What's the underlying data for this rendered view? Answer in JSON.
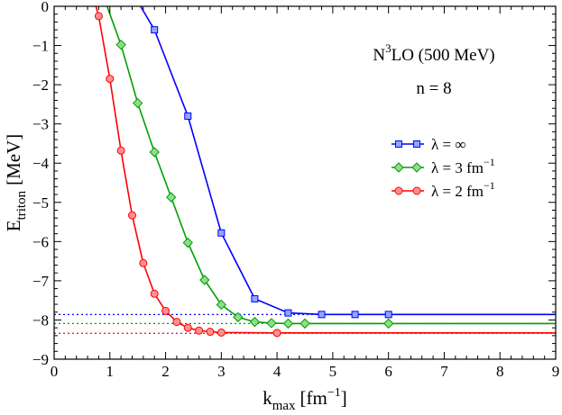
{
  "chart_data": {
    "type": "line",
    "xlabel_main": "k",
    "xlabel_sub": "max",
    "xlabel_unit": "[fm",
    "xlabel_exp": "−1",
    "xlabel_close": "]",
    "ylabel_main": "E",
    "ylabel_sub": "triton",
    "ylabel_unit": "[MeV]",
    "xlim": [
      0,
      9
    ],
    "ylim": [
      -9,
      0
    ],
    "xticks": [
      0,
      1,
      2,
      3,
      4,
      5,
      6,
      7,
      8,
      9
    ],
    "xtick_labels": [
      "0",
      "1",
      "2",
      "3",
      "4",
      "5",
      "6",
      "7",
      "8",
      "9"
    ],
    "yticks": [
      0,
      -1,
      -2,
      -3,
      -4,
      -5,
      -6,
      -7,
      -8,
      -9
    ],
    "ytick_labels": [
      "0",
      "−1",
      "−2",
      "−3",
      "−4",
      "−5",
      "−6",
      "−7",
      "−8",
      "−9"
    ],
    "annotation": {
      "line1_pre": "N",
      "line1_sup": "3",
      "line1_post": "LO (500 MeV)",
      "line2": "n = 8"
    },
    "series": [
      {
        "name": "λ = ∞",
        "label_main": "λ = ∞",
        "label_exp": "",
        "color": "#0000ff",
        "fill": "#8fa8ff",
        "marker": "square",
        "asymptote": -7.86,
        "x": [
          1.55,
          1.8,
          2.4,
          3.0,
          3.6,
          4.2,
          4.8,
          5.4,
          6.0
        ],
        "y": [
          0.0,
          -0.6,
          -2.8,
          -5.78,
          -7.46,
          -7.82,
          -7.86,
          -7.86,
          -7.86
        ],
        "extend_to": 9
      },
      {
        "name": "λ = 3 fm−1",
        "label_main": "λ = 3 fm",
        "label_exp": "−1",
        "color": "#00a000",
        "fill": "#8fdc8f",
        "marker": "diamond",
        "asymptote": -8.09,
        "x": [
          0.95,
          1.2,
          1.5,
          1.8,
          2.1,
          2.4,
          2.7,
          3.0,
          3.3,
          3.6,
          3.9,
          4.2,
          4.5,
          6.0
        ],
        "y": [
          0.0,
          -0.98,
          -2.47,
          -3.72,
          -4.87,
          -6.03,
          -6.98,
          -7.61,
          -7.93,
          -8.05,
          -8.08,
          -8.09,
          -8.09,
          -8.09
        ],
        "extend_to": 9
      },
      {
        "name": "λ = 2 fm−1",
        "label_main": "λ = 2 fm",
        "label_exp": "−1",
        "color": "#ff0000",
        "fill": "#ff9090",
        "marker": "circle",
        "asymptote": -8.34,
        "x": [
          0.75,
          0.8,
          1.0,
          1.2,
          1.4,
          1.6,
          1.8,
          2.0,
          2.2,
          2.4,
          2.6,
          2.8,
          3.0,
          4.0
        ],
        "y": [
          0.0,
          -0.25,
          -1.85,
          -3.68,
          -5.33,
          -6.55,
          -7.33,
          -7.77,
          -8.05,
          -8.2,
          -8.27,
          -8.3,
          -8.32,
          -8.33
        ],
        "extend_to": 9
      }
    ]
  }
}
